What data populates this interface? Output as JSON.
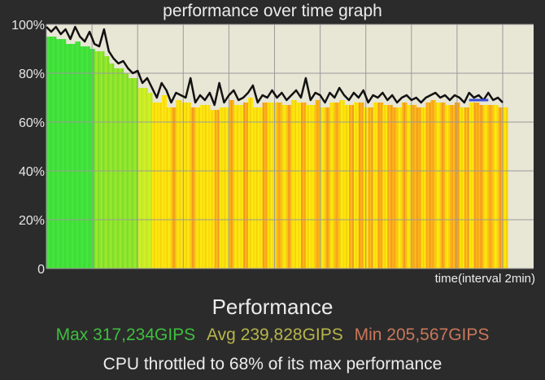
{
  "title": "performance over time graph",
  "x_axis_label": "time(interval 2min)",
  "heading": "Performance",
  "stats": {
    "max": {
      "label": "Max 317,234GIPS",
      "color": "#3fbf3f"
    },
    "avg": {
      "label": "Avg 239,828GIPS",
      "color": "#b7b54a"
    },
    "min": {
      "label": "Min 205,567GIPS",
      "color": "#c8775a"
    }
  },
  "throttle_note": "CPU throttled to 68% of its max performance",
  "colors": {
    "background": "#2b2b2b",
    "plot_background": "#e8e6d5",
    "line": "#111111",
    "average_marker": "#3a4fd8",
    "grid": "#9a9a9a"
  },
  "chart_data": {
    "type": "line",
    "title": "performance over time graph",
    "xlabel": "time(interval 2min)",
    "ylabel": "",
    "ylim": [
      0,
      100
    ],
    "yticks": [
      "0",
      "20%",
      "40%",
      "60%",
      "80%",
      "100%"
    ],
    "grid": true,
    "x_range": [
      0,
      95
    ],
    "series": [
      {
        "values": [
          99,
          97,
          99,
          96,
          98,
          94,
          99,
          95,
          93,
          97,
          92,
          91,
          98,
          89,
          86,
          84,
          85,
          82,
          80,
          81,
          76,
          78,
          74,
          70,
          76,
          73,
          68,
          72,
          71,
          70,
          78,
          68,
          71,
          69,
          72,
          67,
          76,
          68,
          71,
          73,
          69,
          70,
          72,
          75,
          68,
          71,
          70,
          73,
          70,
          72,
          69,
          71,
          73,
          70,
          78,
          69,
          72,
          71,
          68,
          72,
          70,
          74,
          71,
          69,
          72,
          70,
          73,
          68,
          71,
          70,
          72,
          69,
          71,
          68,
          70,
          71,
          69,
          70,
          68,
          70,
          71,
          72,
          70,
          71,
          69,
          71,
          70,
          68,
          72,
          70,
          71,
          69,
          72,
          69,
          70,
          68
        ],
        "band_colors": [
          "g",
          "g",
          "g",
          "g",
          "g",
          "g",
          "g",
          "g",
          "g",
          "g",
          "lg",
          "lg",
          "lg",
          "lg",
          "lg",
          "lg",
          "lg",
          "lg",
          "lg",
          "yg",
          "yg",
          "yg",
          "y",
          "y",
          "y",
          "y",
          "o",
          "y",
          "y",
          "y",
          "o",
          "y",
          "y",
          "y",
          "y",
          "o",
          "y",
          "y",
          "o",
          "y",
          "y",
          "o",
          "y",
          "y",
          "y",
          "o",
          "y",
          "y",
          "o",
          "y",
          "o",
          "y",
          "y",
          "o",
          "y",
          "y",
          "o",
          "y",
          "o",
          "y",
          "o",
          "y",
          "y",
          "o",
          "y",
          "o",
          "y",
          "o",
          "y",
          "o",
          "y",
          "o",
          "o",
          "y",
          "o",
          "y",
          "o",
          "o",
          "y",
          "o",
          "o",
          "y",
          "o",
          "y",
          "o",
          "o",
          "y",
          "o",
          "y",
          "o",
          "o",
          "y",
          "o",
          "y",
          "o",
          "y"
        ]
      }
    ],
    "average_marker": {
      "x_start": 88,
      "x_end": 92,
      "value": 69
    }
  }
}
